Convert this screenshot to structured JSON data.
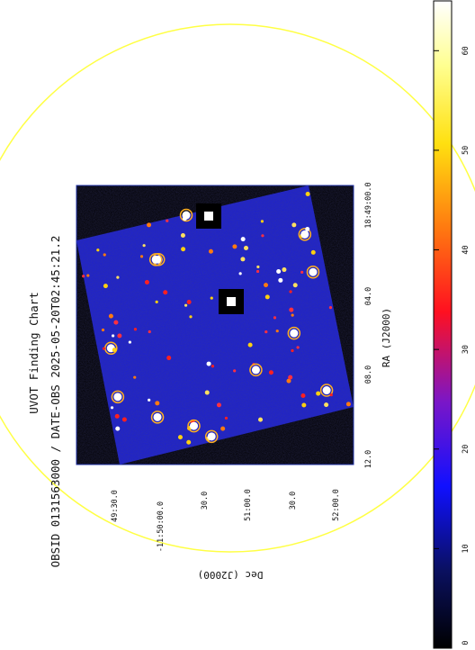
{
  "figure": {
    "title": "UVOT Finding Chart",
    "subtitle": "OBSID 0131563000 / DATE-OBS 2025-05-20T02:45:21.2",
    "ra_label": "RA (J2000)",
    "dec_label": "Dec (J2000)",
    "ra_ticks": [
      "18:49:00.0",
      "04.0",
      "08.0",
      "12.0"
    ],
    "dec_ticks": [
      "49:30.0",
      "-11:50:00.0",
      "30.0",
      "51:00.0",
      "30.0",
      "52:00.0"
    ],
    "colorbar_ticks": [
      "0",
      "10",
      "20",
      "30",
      "40",
      "50",
      "60"
    ],
    "colorbar_range": [
      0,
      65
    ],
    "colors": {
      "background": "#1b1fd6",
      "circle": "#ffff44",
      "frame": "#2233aa"
    },
    "orientation": "rotated 90 degrees clockwise"
  }
}
